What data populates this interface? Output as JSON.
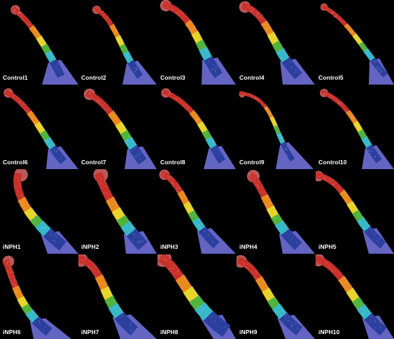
{
  "panels": [
    {
      "label": "Control1"
    },
    {
      "label": "Control2"
    },
    {
      "label": "Control3"
    },
    {
      "label": "Control4"
    },
    {
      "label": "Control5"
    },
    {
      "label": "Control6"
    },
    {
      "label": "Control7"
    },
    {
      "label": "Control8"
    },
    {
      "label": "Control9"
    },
    {
      "label": "Control10"
    },
    {
      "label": "iNPH1"
    },
    {
      "label": "iNPH2"
    },
    {
      "label": "iNPH3"
    },
    {
      "label": "iNPH4"
    },
    {
      "label": "iNPH5"
    },
    {
      "label": "iNPH6"
    },
    {
      "label": "iNPH7"
    },
    {
      "label": "iNPH8"
    },
    {
      "label": "iNPH9"
    },
    {
      "label": "iNPH10"
    }
  ],
  "colors": {
    "background": "#000000",
    "label_text": "#ffffff",
    "band_red": "#c8312a",
    "band_orange": "#e98a1e",
    "band_yellow": "#e6d42a",
    "band_green": "#4fb33c",
    "band_cyan": "#37b8c9",
    "band_blue": "#2b3f9e",
    "base_lavender": "#6f6fd8",
    "cap_pink": "#d86a6a"
  }
}
